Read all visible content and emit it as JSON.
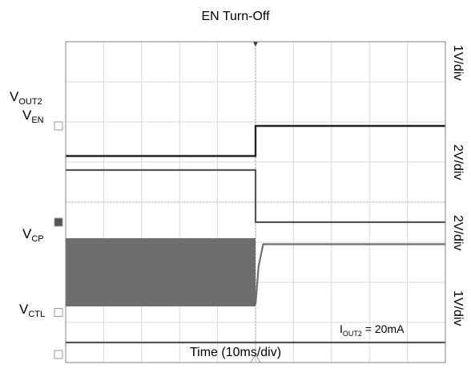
{
  "chart_data": {
    "type": "line",
    "title": "EN Turn-Off",
    "xlabel": "Time (10ms/div)",
    "ylabel": "",
    "x_divisions": 10,
    "y_divisions": 8,
    "grid": true,
    "trigger_x_div": 5,
    "series": [
      {
        "name": "V_OUT2",
        "label_main": "V",
        "label_sub": "OUT2",
        "scale": "1V/div",
        "color": "#222222",
        "points": [
          [
            0,
            5.15
          ],
          [
            5,
            5.15
          ],
          [
            5,
            5.9
          ],
          [
            10,
            5.9
          ]
        ]
      },
      {
        "name": "V_EN",
        "label_main": "V",
        "label_sub": "EN",
        "scale": "2V/div",
        "color": "#555555",
        "points": [
          [
            0,
            4.8
          ],
          [
            5,
            4.8
          ],
          [
            5,
            3.5
          ],
          [
            10,
            3.5
          ]
        ]
      },
      {
        "name": "V_CP",
        "label_main": "V",
        "label_sub": "CP",
        "scale": "2V/div",
        "color": "#6e6e6e",
        "band": {
          "x": [
            0,
            5
          ],
          "y": [
            1.4,
            3.1
          ]
        },
        "points": [
          [
            5,
            1.45
          ],
          [
            5.08,
            2.4
          ],
          [
            5.2,
            2.95
          ],
          [
            10,
            2.95
          ]
        ]
      },
      {
        "name": "V_CTL",
        "label_main": "V",
        "label_sub": "CTL",
        "scale": "1V/div",
        "color": "#555555",
        "points": [
          [
            0,
            0.5
          ],
          [
            10,
            0.5
          ]
        ]
      }
    ],
    "annotations": [
      {
        "main": "I",
        "sub": "OUT2",
        "rest": " = 20mA"
      }
    ]
  }
}
